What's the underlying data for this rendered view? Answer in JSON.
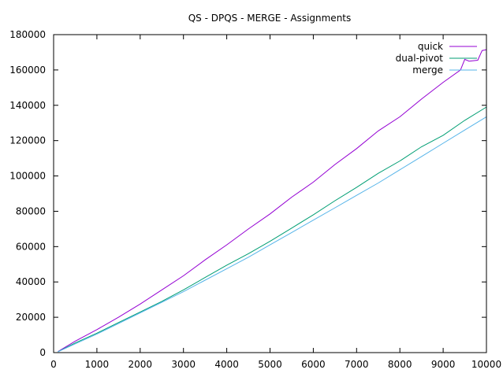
{
  "chart_data": {
    "type": "line",
    "title": "QS - DPQS - MERGE - Assignments",
    "xlabel": "",
    "ylabel": "",
    "xlim": [
      0,
      10000
    ],
    "ylim": [
      0,
      180000
    ],
    "x_ticks": [
      0,
      1000,
      2000,
      3000,
      4000,
      5000,
      6000,
      7000,
      8000,
      9000,
      10000
    ],
    "y_ticks": [
      0,
      20000,
      40000,
      60000,
      80000,
      100000,
      120000,
      140000,
      160000,
      180000
    ],
    "x_tick_labels": [
      "0",
      "1000",
      "2000",
      "3000",
      "4000",
      "5000",
      "6000",
      "7000",
      "8000",
      "9000",
      "10000"
    ],
    "y_tick_labels": [
      "0",
      "20000",
      "40000",
      "60000",
      "80000",
      "100000",
      "120000",
      "140000",
      "160000",
      "180000"
    ],
    "grid": false,
    "legend_position": "top-right",
    "series": [
      {
        "name": "quick",
        "color": "#9400d3",
        "x": [
          100,
          500,
          1000,
          1500,
          2000,
          2500,
          3000,
          3500,
          4000,
          4500,
          5000,
          5500,
          6000,
          6500,
          7000,
          7500,
          8000,
          8500,
          9000,
          9400,
          9500,
          9600,
          9800,
          9900,
          10000
        ],
        "y": [
          600,
          6500,
          13000,
          20000,
          27500,
          35500,
          43500,
          52500,
          61000,
          70000,
          78500,
          88000,
          96500,
          106500,
          115500,
          125500,
          133500,
          143500,
          153000,
          160000,
          166000,
          165000,
          165500,
          171000,
          171500
        ]
      },
      {
        "name": "dual-pivot",
        "color": "#009e73",
        "x": [
          100,
          500,
          1000,
          1500,
          2000,
          2500,
          3000,
          3500,
          4000,
          4500,
          5000,
          5500,
          6000,
          6500,
          7000,
          7500,
          8000,
          8500,
          9000,
          9500,
          10000
        ],
        "y": [
          500,
          5500,
          11000,
          17000,
          23000,
          29000,
          35500,
          42500,
          49500,
          56000,
          63000,
          70500,
          78000,
          86000,
          93500,
          101500,
          108500,
          116500,
          123000,
          131500,
          139000
        ]
      },
      {
        "name": "merge",
        "color": "#56b4e9",
        "x": [
          100,
          500,
          1000,
          1500,
          2000,
          2500,
          3000,
          3500,
          4000,
          4500,
          5000,
          5500,
          6000,
          6500,
          7000,
          7500,
          8000,
          8500,
          9000,
          9500,
          10000
        ],
        "y": [
          500,
          5000,
          10500,
          16500,
          22500,
          28500,
          34500,
          41000,
          47500,
          54000,
          61000,
          68000,
          75000,
          82000,
          89000,
          96000,
          103500,
          111000,
          118500,
          126000,
          133500
        ]
      }
    ]
  }
}
